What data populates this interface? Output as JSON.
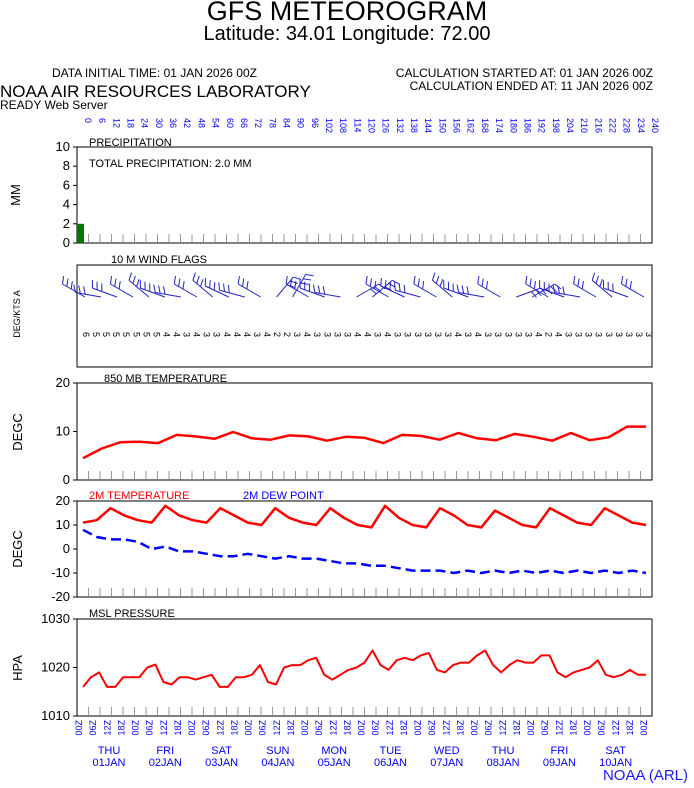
{
  "header": {
    "title": "GFS METEOROGRAM",
    "subtitle": "Latitude: 34.01 Longitude:  72.00",
    "data_initial_time": "DATA INITIAL TIME: 01 JAN 2026 00Z",
    "calc_started": "CALCULATION STARTED AT: 01 JAN 2026 00Z",
    "calc_ended": "CALCULATION ENDED AT: 11 JAN 2026 00Z",
    "lab": "NOAA AIR RESOURCES LABORATORY",
    "server": "READY Web Server",
    "credit": "NOAA (ARL)"
  },
  "colors": {
    "red": "#ff0000",
    "blue": "#0000ff",
    "green": "#007700",
    "wind": "#2222cc"
  },
  "chart_data": {
    "type": "line",
    "hours_step": 6,
    "forecast_hours": [
      "0",
      "6",
      "12",
      "18",
      "24",
      "30",
      "36",
      "42",
      "48",
      "54",
      "60",
      "66",
      "72",
      "78",
      "84",
      "90",
      "96",
      "102",
      "108",
      "114",
      "120",
      "126",
      "132",
      "138",
      "144",
      "150",
      "156",
      "162",
      "168",
      "174",
      "180",
      "186",
      "192",
      "198",
      "204",
      "210",
      "216",
      "222",
      "228",
      "234",
      "240"
    ],
    "time_ticks": [
      "00Z",
      "06Z",
      "12Z",
      "18Z",
      "00Z",
      "06Z",
      "12Z",
      "18Z",
      "00Z",
      "06Z",
      "12Z",
      "18Z",
      "00Z",
      "06Z",
      "12Z",
      "18Z",
      "00Z",
      "06Z",
      "12Z",
      "18Z",
      "00Z",
      "06Z",
      "12Z",
      "18Z",
      "00Z",
      "06Z",
      "12Z",
      "18Z",
      "00Z",
      "06Z",
      "12Z",
      "18Z",
      "00Z",
      "06Z",
      "12Z",
      "18Z",
      "00Z",
      "06Z",
      "12Z",
      "18Z",
      "00Z"
    ],
    "days": [
      {
        "weekday": "THU",
        "date": "01JAN"
      },
      {
        "weekday": "FRI",
        "date": "02JAN"
      },
      {
        "weekday": "SAT",
        "date": "03JAN"
      },
      {
        "weekday": "SUN",
        "date": "04JAN"
      },
      {
        "weekday": "MON",
        "date": "05JAN"
      },
      {
        "weekday": "TUE",
        "date": "06JAN"
      },
      {
        "weekday": "WED",
        "date": "07JAN"
      },
      {
        "weekday": "THU",
        "date": "08JAN"
      },
      {
        "weekday": "FRI",
        "date": "09JAN"
      },
      {
        "weekday": "SAT",
        "date": "10JAN"
      }
    ],
    "panels": {
      "precipitation": {
        "title": "PRECIPITATION",
        "total_label": "TOTAL PRECIPITATION:   2.0 MM",
        "ylabel": "MM",
        "ylim": [
          0,
          10
        ],
        "yticks": [
          "0",
          "2",
          "4",
          "6",
          "8",
          "10"
        ],
        "bars": [
          2.0
        ]
      },
      "wind": {
        "title": "10 M  WIND FLAGS",
        "ylabel": "DEG/KTS  A",
        "speeds_kts": [
          6,
          5,
          5,
          5,
          5,
          5,
          5,
          5,
          4,
          4,
          3,
          4,
          3,
          3,
          4,
          4,
          4,
          3,
          4,
          2,
          2,
          3,
          4,
          3,
          3,
          3,
          3,
          4,
          4,
          3,
          4,
          3,
          3,
          3,
          3,
          3,
          3,
          4,
          3,
          4,
          3,
          3,
          3,
          3,
          3,
          4,
          2,
          4,
          3,
          3,
          3,
          3,
          3,
          3,
          3,
          3,
          3
        ]
      },
      "t850": {
        "title": "850 MB  TEMPERATURE",
        "ylabel": "DEGC",
        "ylim": [
          0,
          20
        ],
        "yticks": [
          "0",
          "10",
          "20"
        ],
        "values": [
          4.5,
          6.5,
          7.8,
          7.9,
          7.6,
          9.3,
          9.0,
          8.5,
          9.9,
          8.6,
          8.3,
          9.2,
          9.0,
          8.1,
          8.9,
          8.7,
          7.6,
          9.3,
          9.1,
          8.3,
          9.7,
          8.6,
          8.2,
          9.5,
          8.9,
          8.1,
          9.7,
          8.2,
          8.8,
          11.0,
          11.0
        ]
      },
      "surface": {
        "title_temp": "2M TEMPERATURE",
        "title_dew": "2M   DEW POINT",
        "ylabel": "DEGC",
        "ylim": [
          -20,
          20
        ],
        "yticks": [
          "-20",
          "-10",
          "0",
          "10",
          "20"
        ],
        "temperature": [
          11,
          12,
          17,
          14,
          12,
          11,
          18,
          14,
          12,
          11,
          17,
          14,
          11,
          10,
          17,
          13,
          11,
          10,
          17,
          13,
          10,
          9,
          18,
          13,
          10,
          9,
          17,
          14,
          10,
          9,
          16,
          13,
          10,
          9,
          17,
          14,
          11,
          10,
          17,
          14,
          11,
          10
        ],
        "dew_point": [
          8,
          5,
          4,
          4,
          3,
          0,
          1,
          -1,
          -1,
          -2,
          -3,
          -3,
          -2,
          -3,
          -4,
          -3,
          -4,
          -4,
          -5,
          -6,
          -6,
          -7,
          -7,
          -8,
          -9,
          -9,
          -9,
          -10,
          -9,
          -10,
          -9,
          -10,
          -9,
          -10,
          -9,
          -10,
          -9,
          -10,
          -9,
          -10,
          -9,
          -10
        ]
      },
      "pressure": {
        "title": "MSL PRESSURE",
        "ylabel": "HPA",
        "ylim": [
          1010,
          1030
        ],
        "yticks": [
          "1010",
          "1020",
          "1030"
        ],
        "values": [
          1016,
          1018,
          1019,
          1016,
          1016,
          1018,
          1018,
          1018,
          1020,
          1020.6,
          1017,
          1016.5,
          1018,
          1018,
          1017.5,
          1018,
          1018.5,
          1016,
          1016,
          1018,
          1018,
          1018.5,
          1020.5,
          1017,
          1016.5,
          1020,
          1020.5,
          1020.5,
          1021.5,
          1022,
          1018.5,
          1017.5,
          1018.5,
          1019.5,
          1020,
          1021,
          1023.5,
          1020.5,
          1019.5,
          1021.5,
          1022,
          1021.5,
          1022.5,
          1023,
          1019.5,
          1019,
          1020.5,
          1021,
          1021,
          1022.5,
          1023.5,
          1020.5,
          1019,
          1020.5,
          1021.5,
          1021,
          1021,
          1022.5,
          1022.5,
          1019,
          1018,
          1019,
          1019.5,
          1020,
          1021.5,
          1018.5,
          1018,
          1018.5,
          1019.5,
          1018.5,
          1018.5
        ]
      }
    }
  }
}
